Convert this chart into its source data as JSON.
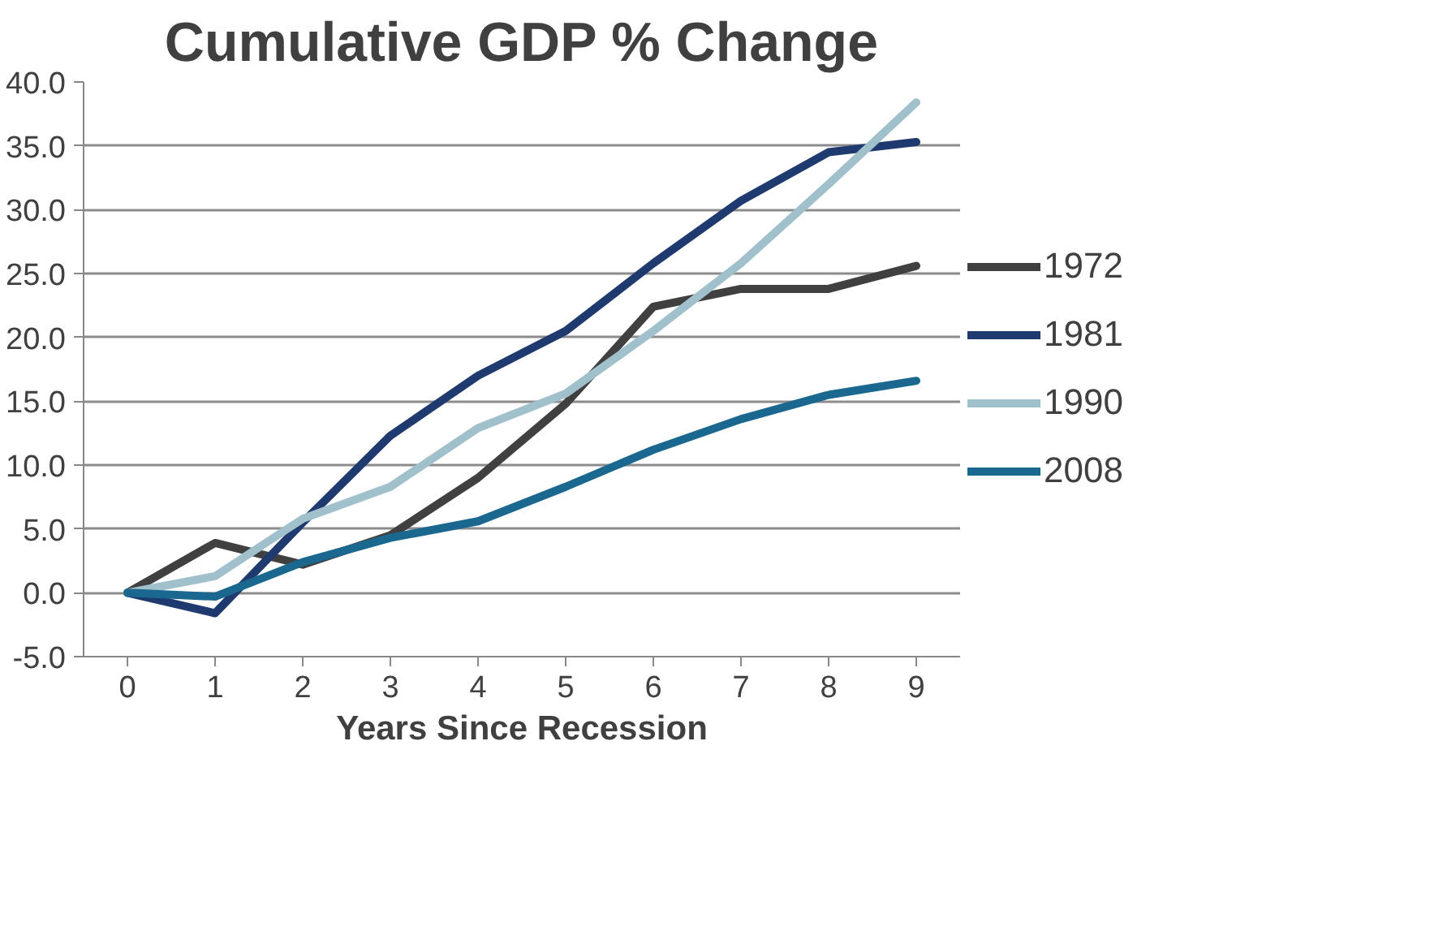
{
  "chart_data": {
    "type": "line",
    "title": "Cumulative GDP % Change",
    "xlabel": "Years Since Recession",
    "x": [
      0,
      1,
      2,
      3,
      4,
      5,
      6,
      7,
      8,
      9
    ],
    "series": [
      {
        "name": "1972",
        "color": "#404040",
        "values": [
          0,
          3.9,
          2.2,
          4.5,
          9.0,
          14.8,
          22.4,
          23.8,
          23.8,
          25.6
        ]
      },
      {
        "name": "1981",
        "color": "#1f3a6e",
        "values": [
          0,
          -1.6,
          5.5,
          12.3,
          17.0,
          20.5,
          25.8,
          30.7,
          34.5,
          35.3
        ]
      },
      {
        "name": "1990",
        "color": "#a0c0cc",
        "values": [
          0,
          1.3,
          5.8,
          8.3,
          12.9,
          15.6,
          20.5,
          25.8,
          32.0,
          38.4
        ]
      },
      {
        "name": "2008",
        "color": "#1a6890",
        "values": [
          0,
          -0.3,
          2.4,
          4.3,
          5.6,
          8.3,
          11.2,
          13.6,
          15.5,
          16.6
        ]
      }
    ],
    "xlim": [
      -0.5,
      9.5
    ],
    "xticks": [
      0,
      1,
      2,
      3,
      4,
      5,
      6,
      7,
      8,
      9
    ],
    "ylim": [
      -5,
      40
    ],
    "yticks": [
      {
        "value": -5,
        "label": "-5.0"
      },
      {
        "value": 0,
        "label": "0.0"
      },
      {
        "value": 5,
        "label": "5.0"
      },
      {
        "value": 10,
        "label": "10.0"
      },
      {
        "value": 15,
        "label": "15.0"
      },
      {
        "value": 20,
        "label": "20.0"
      },
      {
        "value": 25,
        "label": "25.0"
      },
      {
        "value": 30,
        "label": "30.0"
      },
      {
        "value": 35,
        "label": "35.0"
      },
      {
        "value": 40,
        "label": "40.0"
      }
    ],
    "grid": "y",
    "legend": "right",
    "marker": "none",
    "line_style": "solid"
  }
}
